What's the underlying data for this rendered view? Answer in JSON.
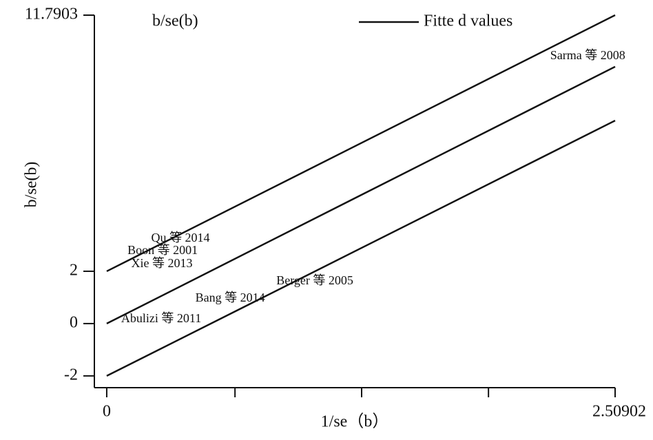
{
  "chart_data": {
    "type": "galbraith",
    "title": "b/se(b)",
    "y_label": "b/se(b)",
    "x_label": "1/se（b）",
    "xlim": [
      -0.061,
      2.50902
    ],
    "ylim": [
      -2.45,
      11.7903
    ],
    "xticks": [
      0,
      {
        "value": 2.50902,
        "label": "2.50902"
      }
    ],
    "xminorticks": [
      0.633,
      1.258,
      1.884
    ],
    "yticks": [
      -2,
      0,
      2,
      {
        "value": 11.7903,
        "label": "11.7903"
      }
    ],
    "legend": "top-right",
    "series": [
      {
        "name": "Fitte d values",
        "color": "#111111",
        "x": [
          0,
          2.50902
        ],
        "values": [
          0,
          9.82
        ]
      },
      {
        "color": "#111111",
        "x": [
          0,
          2.50902
        ],
        "values": [
          2,
          11.7903
        ]
      },
      {
        "color": "#111111",
        "x": [
          0,
          2.50902
        ],
        "values": [
          -2,
          7.76
        ]
      }
    ],
    "studies": {
      "labels": [
        "Qu 等 2014",
        "Boon 等 2001",
        "Xie 等 2013",
        "Berger 等 2005",
        "Bang 等 2014",
        "Abulizi 等 2011",
        "Sarma 等 2008"
      ],
      "x": [
        0.364,
        0.276,
        0.272,
        1.027,
        0.609,
        0.269,
        2.374
      ],
      "values": [
        3.24,
        2.76,
        2.26,
        1.61,
        0.95,
        0.16,
        10.21
      ]
    }
  }
}
